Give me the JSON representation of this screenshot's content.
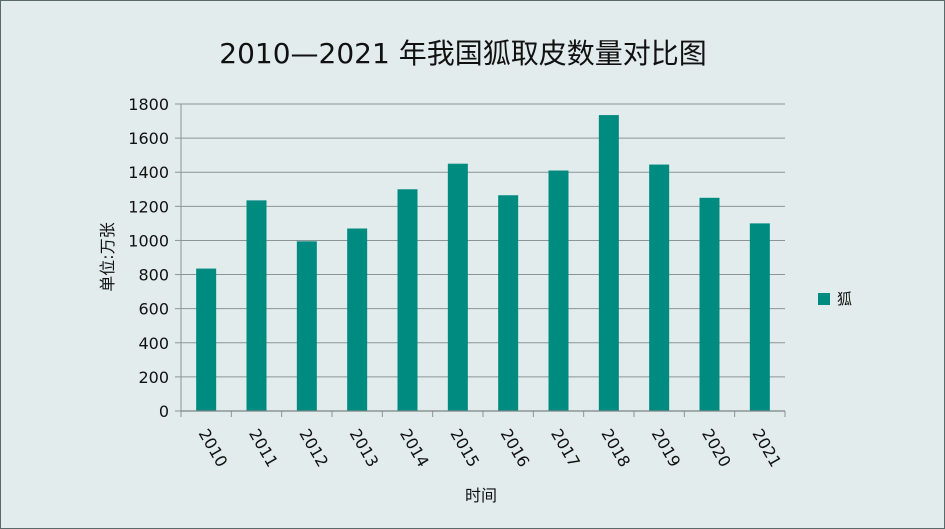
{
  "chart_data": {
    "type": "bar",
    "title": "2010—2021 年我国狐取皮数量对比图",
    "xlabel": "时间",
    "ylabel": "单位:万张",
    "categories": [
      "2010",
      "2011",
      "2012",
      "2013",
      "2014",
      "2015",
      "2016",
      "2017",
      "2018",
      "2019",
      "2020",
      "2021"
    ],
    "series": [
      {
        "name": "狐",
        "color": "#008b80",
        "values": [
          835,
          1235,
          995,
          1070,
          1300,
          1450,
          1265,
          1410,
          1735,
          1445,
          1250,
          1100
        ]
      }
    ],
    "ylim": [
      0,
      1800
    ],
    "yticks": [
      0,
      200,
      400,
      600,
      800,
      1000,
      1200,
      1400,
      1600,
      1800
    ],
    "grid": true,
    "legend_position": "right"
  }
}
